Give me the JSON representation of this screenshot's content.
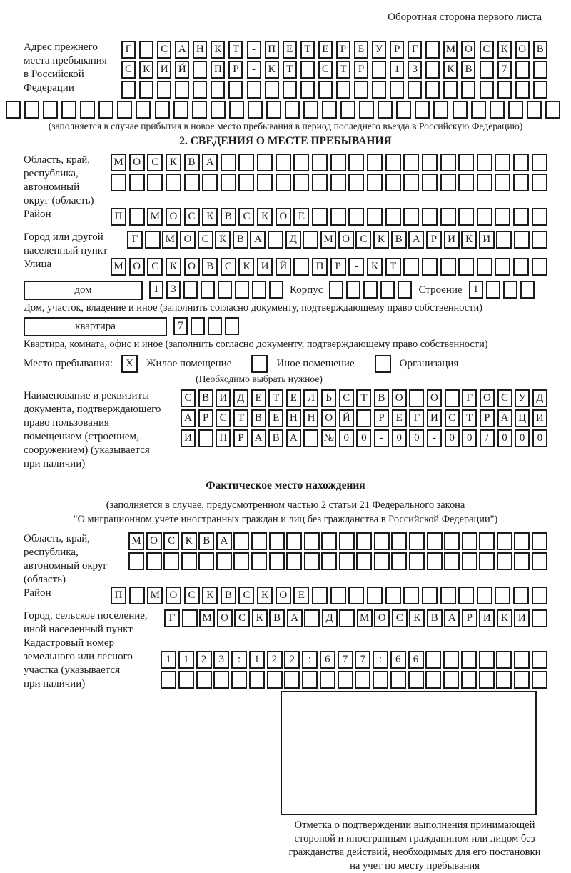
{
  "colors": {
    "ink": "#1c1c1c",
    "background": "#ffffff"
  },
  "header_note": "Оборотная сторона первого листа",
  "prev_address": {
    "label_lines": [
      "Адрес прежнего",
      "места пребывания",
      "в Российской",
      "Федерации"
    ],
    "rows": [
      "Г САНКТ-ПЕТЕРБУРГ МОСКОВ",
      "СКИЙ ПР-КТ СТР 13 КВ 7  ",
      "                        "
    ],
    "full_row": "                              ",
    "caption": "(заполняется в случае прибытия в новое место пребывания в период последнего въезда в Российскую Федерацию)"
  },
  "section2": {
    "title": "2. СВЕДЕНИЯ О МЕСТЕ ПРЕБЫВАНИЯ",
    "oblast": {
      "label_lines": [
        "Область, край,",
        "республика,",
        "автономный",
        "округ (область)"
      ],
      "rows": [
        "МОСКВА                  ",
        "                        "
      ]
    },
    "raion": {
      "label": "Район",
      "row": "П МОСКВСКОЕ             "
    },
    "gorod": {
      "label_lines": [
        "Город или другой",
        "населенный пункт"
      ],
      "row": "Г МОСКВА Д МОСКВАРИКИ   "
    },
    "ulitsa": {
      "label": "Улица",
      "row": "МОСКОВСКИЙ ПР-КТ        "
    },
    "dom": {
      "box_label": "дом",
      "cells": "13      ",
      "korpus_label": "Корпус",
      "korpus_cells": "     ",
      "stroenie_label": "Строение",
      "stroenie_cells": "1   "
    },
    "dom_caption": "Дом, участок, владение и иное (заполнить согласно документу, подтверждающему право собственности)",
    "kvartira": {
      "box_label": "квартира",
      "cells": "7   "
    },
    "kvartira_caption": "Квартира, комната, офис и иное (заполнить согласно документу, подтверждающему право собственности)",
    "residence": {
      "label": "Место пребывания:",
      "options": [
        {
          "check": "X",
          "label": "Жилое помещение"
        },
        {
          "check": "",
          "label": "Иное помещение"
        },
        {
          "check": "",
          "label": "Организация"
        }
      ],
      "note": "(Необходимо выбрать нужное)"
    },
    "doc": {
      "label_lines": [
        "Наименование и реквизиты",
        "документа, подтверждающего",
        "право пользования",
        "помещением (строением,",
        "сооружением) (указывается",
        "при наличии)"
      ],
      "rows": [
        "СВИДЕТЕЛЬСТВО О ГОСУД",
        "АРСТВЕННОЙ РЕГИСТРАЦИ",
        "И ПРАВА №00-00-00/000"
      ]
    }
  },
  "actual_location": {
    "title": "Фактическое место нахождения",
    "caption_lines": [
      "(заполняется в случае, предусмотренном частью 2 статьи 21 Федерального закона",
      "\"О миграционном учете иностранных граждан и лиц без гражданства в Российской Федерации\")"
    ],
    "oblast": {
      "label_lines": [
        "Область, край,",
        "республика,",
        "автономный округ",
        "(область)"
      ],
      "rows": [
        "МОСКВА                  ",
        "                        "
      ]
    },
    "raion": {
      "label": "Район",
      "row": "П МОСКВСКОЕ             "
    },
    "gorod": {
      "label_lines": [
        "Город, сельское поселение,",
        "иной населенный пункт"
      ],
      "row": "Г МОСКВА Д МОСКВАРИКИ "
    },
    "kadastr": {
      "label_lines": [
        "Кадастровый номер",
        "земельного или лесного",
        "участка (указывается",
        "при наличии)"
      ],
      "rows": [
        "1123:122:677:66       ",
        "                      "
      ]
    }
  },
  "stamp": {
    "caption_lines": [
      "Отметка о подтверждении выполнения принимающей",
      "стороной и иностранным гражданином или лицом без",
      "гражданства действий, необходимых для его постановки",
      "на учет по месту пребывания"
    ]
  }
}
